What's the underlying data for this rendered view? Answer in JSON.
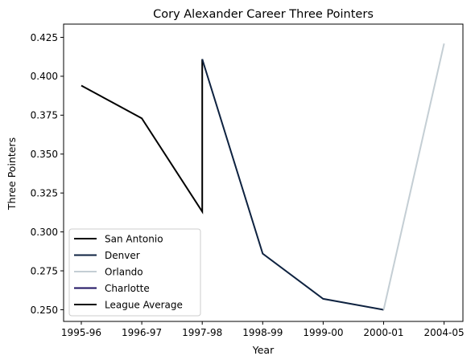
{
  "chart_data": {
    "type": "line",
    "title": "Cory Alexander Career Three Pointers",
    "xlabel": "Year",
    "ylabel": "Three Pointers",
    "categories": [
      "1995-96",
      "1996-97",
      "1997-98",
      "1998-99",
      "1999-00",
      "2000-01",
      "2004-05"
    ],
    "yticks": [
      "0.250",
      "0.275",
      "0.300",
      "0.325",
      "0.350",
      "0.375",
      "0.400",
      "0.425"
    ],
    "ylim": [
      0.2425,
      0.4335
    ],
    "grid": false,
    "legend_position": "lower-left",
    "series": [
      {
        "name": "San Antonio",
        "color": "#000000",
        "points": [
          [
            "1995-96",
            0.394
          ],
          [
            "1996-97",
            0.373
          ],
          [
            "1997-98",
            0.313
          ],
          [
            "1997-98",
            0.411
          ]
        ]
      },
      {
        "name": "Denver",
        "color": "#0e2240",
        "points": [
          [
            "1997-98",
            0.411
          ],
          [
            "1998-99",
            0.286
          ],
          [
            "1999-00",
            0.257
          ],
          [
            "2000-01",
            0.25
          ]
        ]
      },
      {
        "name": "Orlando",
        "color": "#c4ced4",
        "points": [
          [
            "2000-01",
            0.25
          ],
          [
            "2004-05",
            0.421
          ]
        ]
      },
      {
        "name": "Charlotte",
        "color": "#1d1160",
        "points": []
      },
      {
        "name": "League Average",
        "color": "#000000",
        "points": []
      }
    ]
  }
}
